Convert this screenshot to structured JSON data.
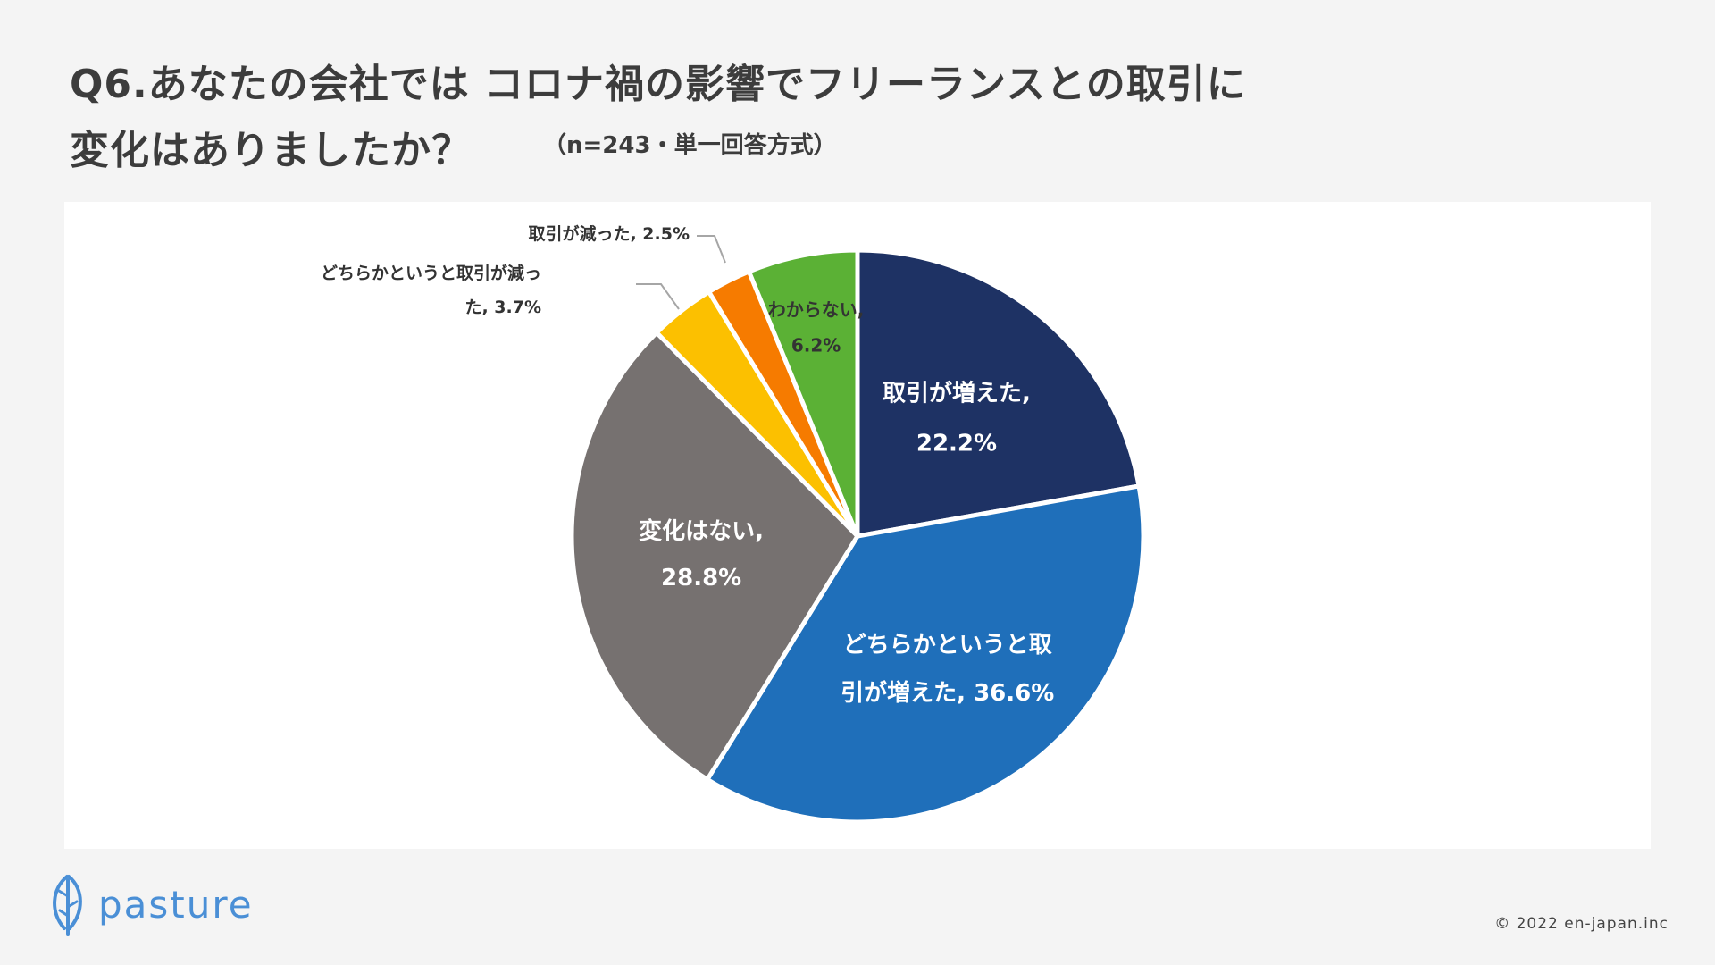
{
  "header": {
    "title_line1": "Q6.あなたの会社では コロナ禍の影響でフリーランスとの取引に",
    "title_line2": "変化はありましたか？",
    "subtitle": "（n=243・単一回答方式）"
  },
  "chart_data": {
    "type": "pie",
    "start_angle_deg": 0,
    "direction": "clockwise",
    "slices": [
      {
        "label": "取引が増えた",
        "value": 22.2,
        "display": [
          "取引が増えた,",
          "22.2%"
        ],
        "color": "#1e3264",
        "label_style": "inside"
      },
      {
        "label": "どちらかというと取引が増えた",
        "value": 36.6,
        "display": [
          "どちらかというと取",
          "引が増えた, 36.6%"
        ],
        "color": "#1f6fba",
        "label_style": "inside"
      },
      {
        "label": "変化はない",
        "value": 28.8,
        "display": [
          "変化はない,",
          "28.8%"
        ],
        "color": "#767170",
        "label_style": "inside"
      },
      {
        "label": "どちらかというと取引が減った",
        "value": 3.7,
        "display": [
          "どちらかというと取引が減っ",
          "た, 3.7%"
        ],
        "color": "#fcc000",
        "label_style": "outside"
      },
      {
        "label": "取引が減った",
        "value": 2.5,
        "display": [
          "取引が減った, 2.5%"
        ],
        "color": "#f67b00",
        "label_style": "outside"
      },
      {
        "label": "わからない",
        "value": 6.2,
        "display": [
          "わからない,",
          "6.2%"
        ],
        "color": "#5bb135",
        "label_style": "inside-dark"
      }
    ]
  },
  "footer": {
    "logo_text": "pasture",
    "copyright": "© 2022 en-japan.inc"
  },
  "colors": {
    "background": "#f4f4f4",
    "panel": "#ffffff",
    "title": "#3c3c3c",
    "logo": "#4a8fd6"
  }
}
